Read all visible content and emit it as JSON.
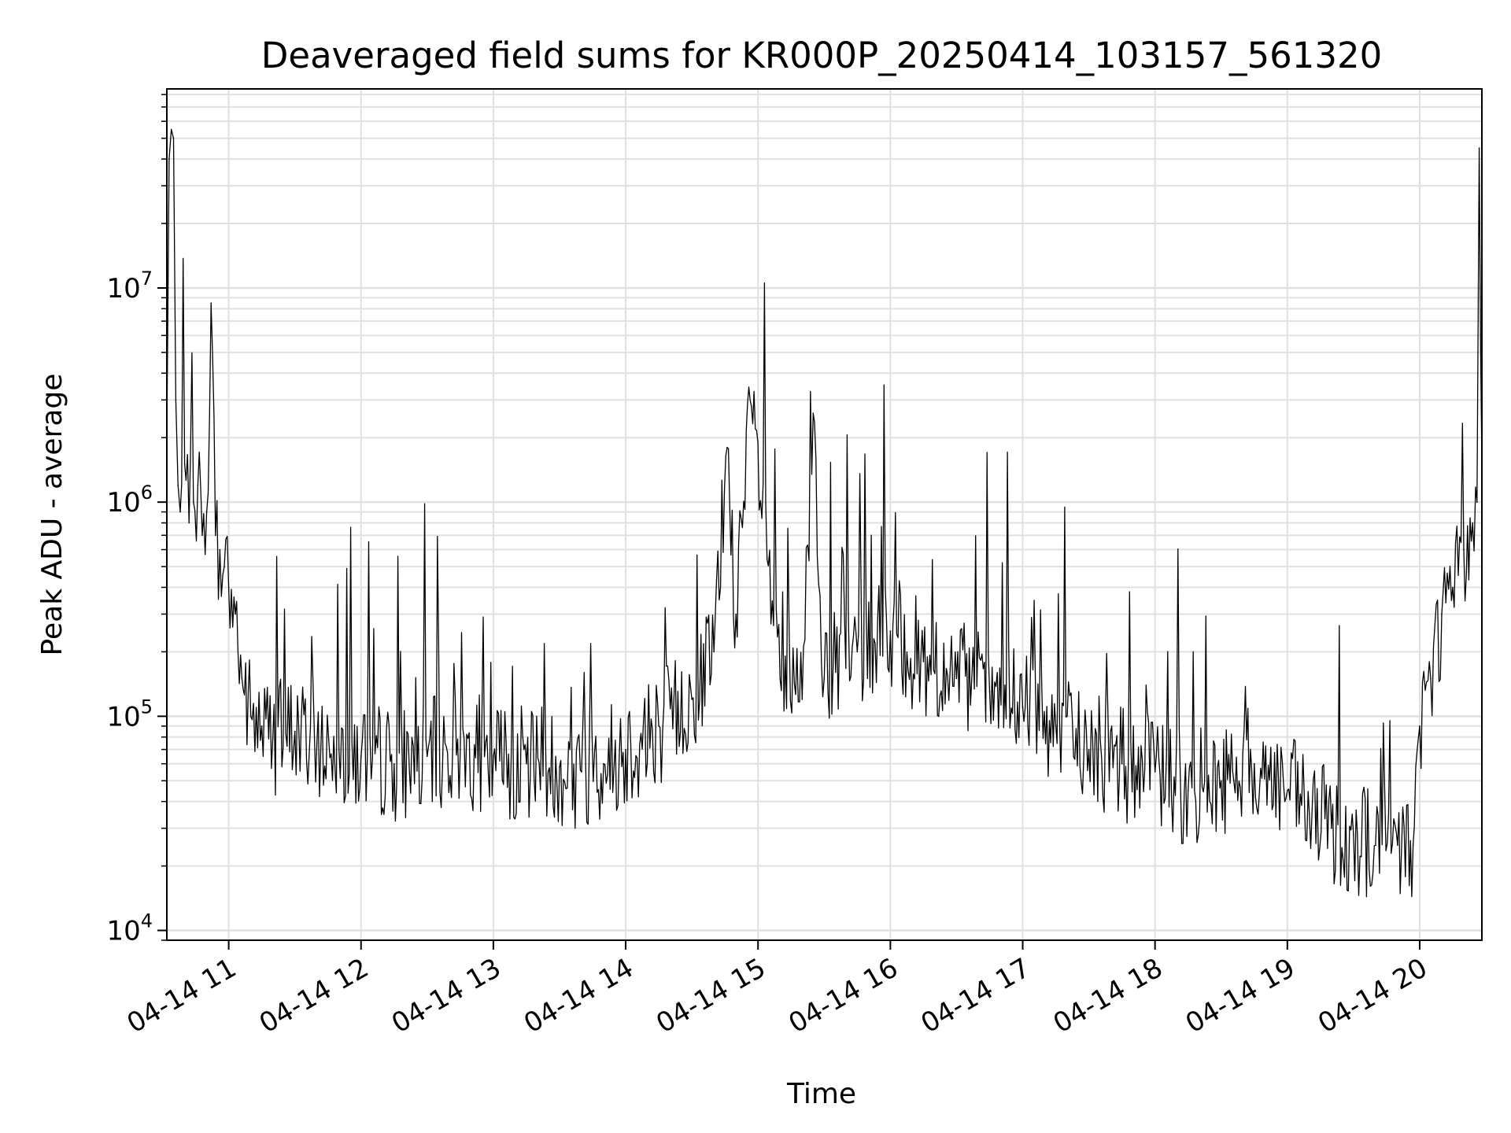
{
  "chart_data": {
    "type": "line",
    "title": "Deaveraged field sums for KR000P_20250414_103157_561320",
    "xlabel": "Time",
    "ylabel": "Peak ADU - average",
    "yscale": "log",
    "ylim": [
      9000,
      85000000
    ],
    "xlim": [
      "2025-04-14 10:31:57",
      "2025-04-14 20:28:12"
    ],
    "grid": true,
    "legend": "none",
    "line_color": "#000000",
    "grid_color": "#e0e0e0",
    "xticks": [
      {
        "value": "2025-04-14 11:00",
        "label": "04-14 11"
      },
      {
        "value": "2025-04-14 12:00",
        "label": "04-14 12"
      },
      {
        "value": "2025-04-14 13:00",
        "label": "04-14 13"
      },
      {
        "value": "2025-04-14 14:00",
        "label": "04-14 14"
      },
      {
        "value": "2025-04-14 15:00",
        "label": "04-14 15"
      },
      {
        "value": "2025-04-14 16:00",
        "label": "04-14 16"
      },
      {
        "value": "2025-04-14 17:00",
        "label": "04-14 17"
      },
      {
        "value": "2025-04-14 18:00",
        "label": "04-14 18"
      },
      {
        "value": "2025-04-14 19:00",
        "label": "04-14 19"
      },
      {
        "value": "2025-04-14 20:00",
        "label": "04-14 20"
      }
    ],
    "yticks": [
      {
        "value": 10000,
        "base": "10",
        "exp": "4"
      },
      {
        "value": 100000,
        "base": "10",
        "exp": "5"
      },
      {
        "value": 1000000,
        "base": "10",
        "exp": "6"
      },
      {
        "value": 10000000,
        "base": "10",
        "exp": "7"
      }
    ],
    "series": [
      {
        "x": [
          "2025-04-14 10:31:57",
          "2025-04-14 10:33:00",
          "2025-04-14 10:34:00",
          "2025-04-14 10:35:00",
          "2025-04-14 10:36:00",
          "2025-04-14 10:37:00",
          "2025-04-14 10:38:00",
          "2025-04-14 10:40:00",
          "2025-04-14 10:42:00",
          "2025-04-14 10:44:00",
          "2025-04-14 10:46:00",
          "2025-04-14 10:48:00",
          "2025-04-14 10:50:00",
          "2025-04-14 10:52:00",
          "2025-04-14 10:54:00",
          "2025-04-14 10:56:00",
          "2025-04-14 10:58:00",
          "2025-04-14 11:00:00",
          "2025-04-14 11:03:00",
          "2025-04-14 11:06:00",
          "2025-04-14 11:10:00",
          "2025-04-14 11:15:00",
          "2025-04-14 11:20:00",
          "2025-04-14 11:30:00",
          "2025-04-14 11:40:00",
          "2025-04-14 11:50:00",
          "2025-04-14 12:00:00",
          "2025-04-14 12:15:00",
          "2025-04-14 12:30:00",
          "2025-04-14 12:45:00",
          "2025-04-14 13:00:00",
          "2025-04-14 13:15:00",
          "2025-04-14 13:30:00",
          "2025-04-14 13:40:00",
          "2025-04-14 13:50:00",
          "2025-04-14 14:00:00",
          "2025-04-14 14:15:00",
          "2025-04-14 14:30:00",
          "2025-04-14 14:40:00",
          "2025-04-14 14:46:00",
          "2025-04-14 14:50:00",
          "2025-04-14 14:57:00",
          "2025-04-14 15:10:00",
          "2025-04-14 15:20:00",
          "2025-04-14 15:25:00",
          "2025-04-14 15:30:00",
          "2025-04-14 15:45:00",
          "2025-04-14 16:00:00",
          "2025-04-14 16:15:00",
          "2025-04-14 16:30:00",
          "2025-04-14 16:45:00",
          "2025-04-14 17:00:00",
          "2025-04-14 17:15:00",
          "2025-04-14 17:30:00",
          "2025-04-14 17:45:00",
          "2025-04-14 18:00:00",
          "2025-04-14 18:15:00",
          "2025-04-14 18:30:00",
          "2025-04-14 18:45:00",
          "2025-04-14 19:00:00",
          "2025-04-14 19:10:00",
          "2025-04-14 19:20:00",
          "2025-04-14 19:30:00",
          "2025-04-14 19:40:00",
          "2025-04-14 19:50:00",
          "2025-04-14 19:57:00",
          "2025-04-14 20:00:00",
          "2025-04-14 20:05:00",
          "2025-04-14 20:10:00",
          "2025-04-14 20:15:00",
          "2025-04-14 20:20:00",
          "2025-04-14 20:24:00",
          "2025-04-14 20:26:00",
          "2025-04-14 20:27:00",
          "2025-04-14 20:28:12"
        ],
        "y": [
          2000000,
          40000000,
          55000000,
          50000000,
          3000000,
          1200000,
          900000,
          1500000,
          800000,
          1000000,
          1200000,
          700000,
          900000,
          8500000,
          700000,
          600000,
          500000,
          400000,
          300000,
          150000,
          100000,
          90000,
          80000,
          85000,
          75000,
          70000,
          65000,
          60000,
          65000,
          70000,
          65000,
          60000,
          58000,
          55000,
          60000,
          70000,
          90000,
          120000,
          200000,
          1800000,
          300000,
          2800000,
          150000,
          120000,
          2600000,
          150000,
          200000,
          250000,
          180000,
          150000,
          130000,
          110000,
          90000,
          70000,
          60000,
          55000,
          45000,
          50000,
          60000,
          45000,
          35000,
          30000,
          28000,
          25000,
          25000,
          25000,
          90000,
          150000,
          300000,
          400000,
          600000,
          800000,
          1000000,
          45000000,
          1500000
        ]
      }
    ]
  }
}
